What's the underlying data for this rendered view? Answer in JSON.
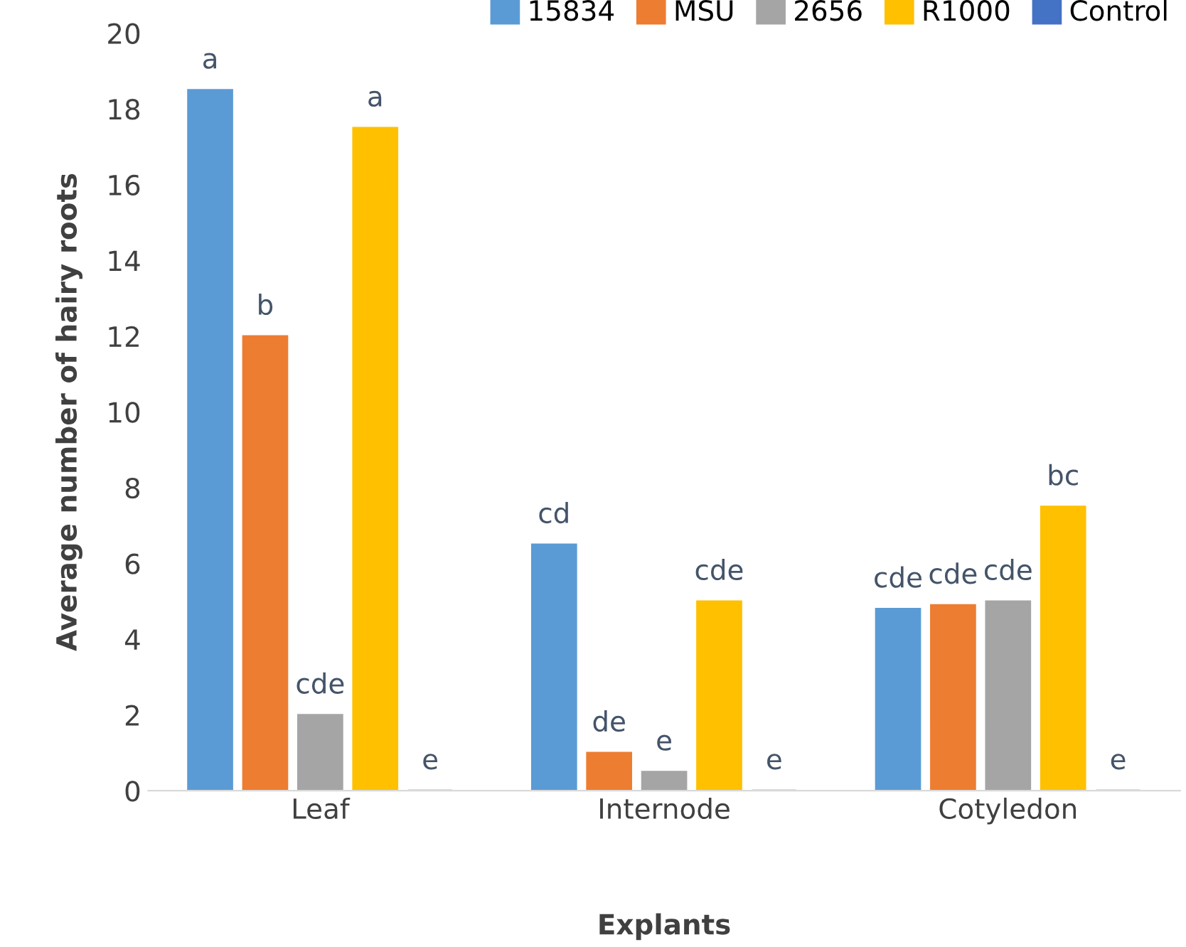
{
  "chart_data": {
    "type": "bar",
    "xlabel": "Explants",
    "ylabel": "Average number of hairy roots",
    "categories": [
      "Leaf",
      "Internode",
      "Cotyledon"
    ],
    "series": [
      {
        "name": "15834",
        "color": "#5b9bd5",
        "values": [
          18.5,
          6.5,
          4.8
        ],
        "value_labels": [
          "a",
          "cd",
          "cde"
        ]
      },
      {
        "name": "MSU",
        "color": "#ed7d31",
        "values": [
          12,
          1,
          4.9
        ],
        "value_labels": [
          "b",
          "de",
          "cde"
        ]
      },
      {
        "name": "2656",
        "color": "#a5a5a5",
        "values": [
          2,
          0.5,
          5
        ],
        "value_labels": [
          "cde",
          "e",
          "cde"
        ]
      },
      {
        "name": "R1000",
        "color": "#ffc000",
        "values": [
          17.5,
          5,
          7.5
        ],
        "value_labels": [
          "a",
          "cde",
          "bc"
        ]
      },
      {
        "name": "Control",
        "color": "#4472c4",
        "values": [
          0,
          0,
          0
        ],
        "value_labels": [
          "e",
          "e",
          "e"
        ]
      }
    ],
    "ylim": [
      0,
      20
    ],
    "yticks": [
      0,
      2,
      4,
      6,
      8,
      10,
      12,
      14,
      16,
      18,
      20
    ],
    "grid": false,
    "legend": "top right"
  }
}
